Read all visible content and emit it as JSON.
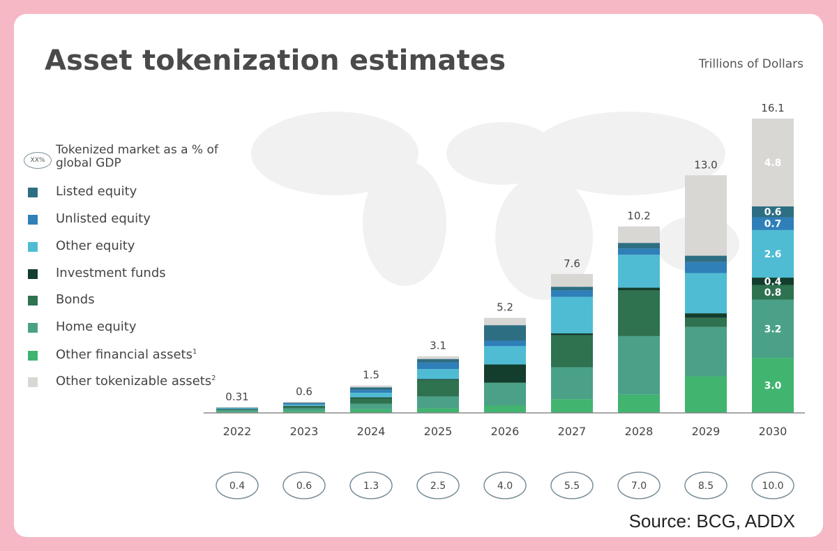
{
  "title": "Asset tokenization estimates",
  "units": "Trillions of Dollars",
  "source": "Source: BCG, ADDX",
  "legend": {
    "gdp_oval": "XX%",
    "gdp_note": "Tokenized market as a % of global GDP",
    "items": [
      {
        "label": "Listed equity",
        "sup": "",
        "color": "#2e6e83"
      },
      {
        "label": "Unlisted equity",
        "sup": "",
        "color": "#2f7fb9"
      },
      {
        "label": "Other equity",
        "sup": "",
        "color": "#4fbcd3"
      },
      {
        "label": "Investment funds",
        "sup": "",
        "color": "#133d2c"
      },
      {
        "label": "Bonds",
        "sup": "",
        "color": "#2e7250"
      },
      {
        "label": "Home equity",
        "sup": "",
        "color": "#4aa187"
      },
      {
        "label": "Other financial assets",
        "sup": "1",
        "color": "#41b46f"
      },
      {
        "label": "Other tokenizable assets",
        "sup": "2",
        "color": "#d8d7d4"
      }
    ]
  },
  "chart_data": {
    "type": "bar",
    "stacked": true,
    "categories": [
      "2022",
      "2023",
      "2024",
      "2025",
      "2026",
      "2027",
      "2028",
      "2029",
      "2030"
    ],
    "totals": [
      "0.31",
      "0.6",
      "1.5",
      "3.1",
      "5.2",
      "7.6",
      "10.2",
      "13.0",
      "16.1"
    ],
    "gdp_percent": [
      "0.4",
      "0.6",
      "1.3",
      "2.5",
      "4.0",
      "5.5",
      "7.0",
      "8.5",
      "10.0"
    ],
    "ylabel": "Trillions of Dollars",
    "ylim": [
      0,
      16.1
    ],
    "series": [
      {
        "name": "Other financial assets",
        "color": "#41b46f",
        "values": [
          0.05,
          0.1,
          0.2,
          0.25,
          0.4,
          0.75,
          1.0,
          2.0,
          3.0
        ],
        "labels": [
          "",
          "",
          "",
          "",
          "",
          "",
          "",
          "",
          "3.0"
        ]
      },
      {
        "name": "Home equity",
        "color": "#4aa187",
        "values": [
          0.1,
          0.15,
          0.3,
          0.65,
          1.25,
          1.75,
          3.2,
          2.7,
          3.2
        ],
        "labels": [
          "",
          "",
          "",
          "",
          "",
          "",
          "",
          "",
          "3.2"
        ]
      },
      {
        "name": "Bonds",
        "color": "#2e7250",
        "values": [
          0.05,
          0.1,
          0.3,
          0.9,
          0.0,
          1.75,
          2.5,
          0.5,
          0.8
        ],
        "labels": [
          "",
          "",
          "",
          "",
          "",
          "",
          "",
          "",
          "0.8"
        ]
      },
      {
        "name": "Investment funds",
        "color": "#133d2c",
        "values": [
          0.01,
          0.03,
          0.05,
          0.05,
          1.0,
          0.1,
          0.15,
          0.25,
          0.4
        ],
        "labels": [
          "",
          "",
          "",
          "",
          "",
          "",
          "",
          "",
          "0.4"
        ]
      },
      {
        "name": "Other equity",
        "color": "#4fbcd3",
        "values": [
          0.04,
          0.07,
          0.25,
          0.55,
          1.0,
          2.0,
          1.8,
          2.2,
          2.6
        ],
        "labels": [
          "",
          "",
          "",
          "",
          "",
          "",
          "",
          "",
          "2.6"
        ]
      },
      {
        "name": "Unlisted equity",
        "color": "#2f7fb9",
        "values": [
          0.02,
          0.06,
          0.15,
          0.35,
          0.3,
          0.35,
          0.35,
          0.6,
          0.7
        ],
        "labels": [
          "",
          "",
          "",
          "",
          "",
          "",
          "",
          "",
          "0.7"
        ]
      },
      {
        "name": "Listed equity",
        "color": "#2e6e83",
        "values": [
          0.02,
          0.05,
          0.15,
          0.2,
          0.85,
          0.2,
          0.3,
          0.35,
          0.6
        ],
        "labels": [
          "",
          "",
          "",
          "",
          "",
          "",
          "",
          "",
          "0.6"
        ]
      },
      {
        "name": "Other tokenizable assets",
        "color": "#d8d7d4",
        "values": [
          0.02,
          0.04,
          0.1,
          0.15,
          0.4,
          0.7,
          0.9,
          4.4,
          4.8
        ],
        "labels": [
          "",
          "",
          "",
          "",
          "",
          "",
          "",
          "",
          "4.8"
        ]
      }
    ]
  }
}
